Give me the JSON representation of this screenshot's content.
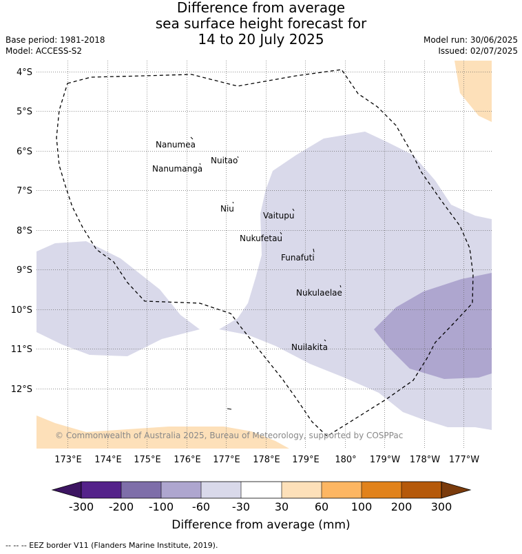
{
  "title": {
    "line1": "Difference from average",
    "line2": "sea surface height forecast for",
    "line3": "14 to 20 July 2025"
  },
  "meta": {
    "base_period": "Base period: 1981-2018",
    "model": "Model: ACCESS-S2",
    "model_run": "Model run: 30/06/2025",
    "issued": "Issued: 02/07/2025"
  },
  "map": {
    "lat_labels": [
      "4°S",
      "5°S",
      "6°S",
      "7°S",
      "8°S",
      "9°S",
      "10°S",
      "11°S",
      "12°S"
    ],
    "lon_labels": [
      "173°E",
      "174°E",
      "175°E",
      "176°E",
      "177°E",
      "178°E",
      "179°E",
      "180°",
      "179°W",
      "178°W",
      "177°W"
    ],
    "places": [
      "Nanumea",
      "Nuitao",
      "Nanumanga",
      "Niu",
      "Vaitupu",
      "Nukufetau",
      "Funafuti",
      "Nukulaelae",
      "Nuilakita"
    ],
    "copyright": "© Commonwealth of Australia 2025, Bureau of Meteorology, supported by COSPPac"
  },
  "colorbar": {
    "ticks": [
      "-300",
      "-200",
      "-100",
      "-60",
      "-30",
      "30",
      "60",
      "100",
      "200",
      "300"
    ],
    "colors": [
      "#3d1562",
      "#54228a",
      "#7e6ea9",
      "#aea6cf",
      "#d9d9ea",
      "#ffffff",
      "#fde0b9",
      "#fdb662",
      "#e1821b",
      "#b5590a",
      "#7a3b0c"
    ],
    "label": "Difference from average (mm)"
  },
  "footer": "-- -- -- EEZ border V11 (Flanders Marine Institute, 2019)."
}
